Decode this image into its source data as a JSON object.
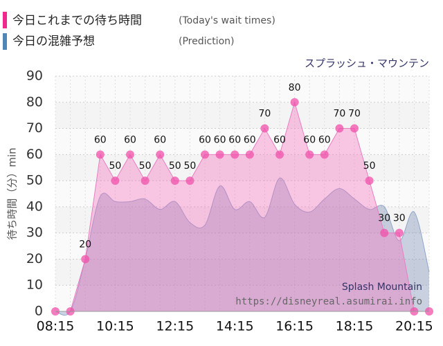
{
  "chart_data": {
    "type": "area",
    "title": "スプラッシュ・マウンテン",
    "y_label": "待ち時間（分）min",
    "watermark": "Splash Mountain",
    "source": "https://disneyreal.asumirai.info",
    "categories": [
      "08:15",
      null,
      null,
      null,
      "10:15",
      null,
      null,
      null,
      "12:15",
      null,
      null,
      null,
      "14:15",
      null,
      null,
      null,
      "16:15",
      null,
      null,
      null,
      "18:15",
      null,
      null,
      null,
      "20:15",
      null
    ],
    "series": [
      {
        "name": "今日これまでの待ち時間",
        "note": "(Today's wait times)",
        "color": "#f0288c",
        "values": [
          0,
          0,
          20,
          60,
          50,
          60,
          50,
          60,
          50,
          50,
          60,
          60,
          60,
          60,
          70,
          60,
          80,
          60,
          60,
          70,
          70,
          50,
          30,
          30,
          0,
          0
        ]
      },
      {
        "name": "今日の混雑予想",
        "note": "(Prediction)",
        "color": "#4f86b5",
        "values": [
          0,
          0,
          20,
          44,
          42,
          42,
          43,
          39,
          42,
          34,
          33,
          48,
          39,
          42,
          36,
          51,
          41,
          38,
          43,
          47,
          43,
          39,
          40,
          27,
          38,
          15
        ]
      }
    ],
    "ylim": [
      0,
      90
    ],
    "yticks": [
      0,
      10,
      20,
      30,
      40,
      50,
      60,
      70,
      80,
      90
    ],
    "grid": true
  }
}
